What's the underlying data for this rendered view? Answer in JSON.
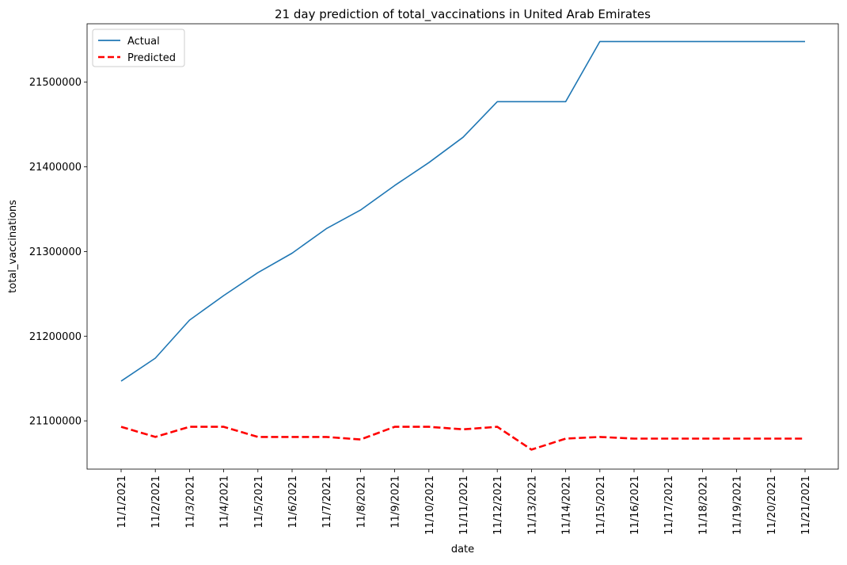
{
  "chart_data": {
    "type": "line",
    "title": "21 day prediction of total_vaccinations in United Arab Emirates",
    "xlabel": "date",
    "ylabel": "total_vaccinations",
    "categories": [
      "11/1/2021",
      "11/2/2021",
      "11/3/2021",
      "11/4/2021",
      "11/5/2021",
      "11/6/2021",
      "11/7/2021",
      "11/8/2021",
      "11/9/2021",
      "11/10/2021",
      "11/11/2021",
      "11/12/2021",
      "11/13/2021",
      "11/14/2021",
      "11/15/2021",
      "11/16/2021",
      "11/17/2021",
      "11/18/2021",
      "11/19/2021",
      "11/20/2021",
      "11/21/2021"
    ],
    "ylim": [
      21043000,
      21569000
    ],
    "yticks": [
      21100000,
      21200000,
      21300000,
      21400000,
      21500000
    ],
    "ytick_labels": [
      "21100000",
      "21200000",
      "21300000",
      "21400000",
      "21500000"
    ],
    "grid": false,
    "legend_position": "top-left",
    "series": [
      {
        "name": "Actual",
        "color": "#1f77b4",
        "style": "solid",
        "values": [
          21147000,
          21174000,
          21219000,
          21248000,
          21275000,
          21298000,
          21327000,
          21349000,
          21378000,
          21405000,
          21435000,
          21477000,
          21477000,
          21477000,
          21548000,
          21548000,
          21548000,
          21548000,
          21548000,
          21548000,
          21548000
        ]
      },
      {
        "name": "Predicted",
        "color": "#ff0000",
        "style": "dashed",
        "values": [
          21093000,
          21081000,
          21093000,
          21093000,
          21081000,
          21081000,
          21081000,
          21078000,
          21093000,
          21093000,
          21090000,
          21093000,
          21066000,
          21079000,
          21081000,
          21079000,
          21079000,
          21079000,
          21079000,
          21079000,
          21079000
        ]
      }
    ]
  }
}
